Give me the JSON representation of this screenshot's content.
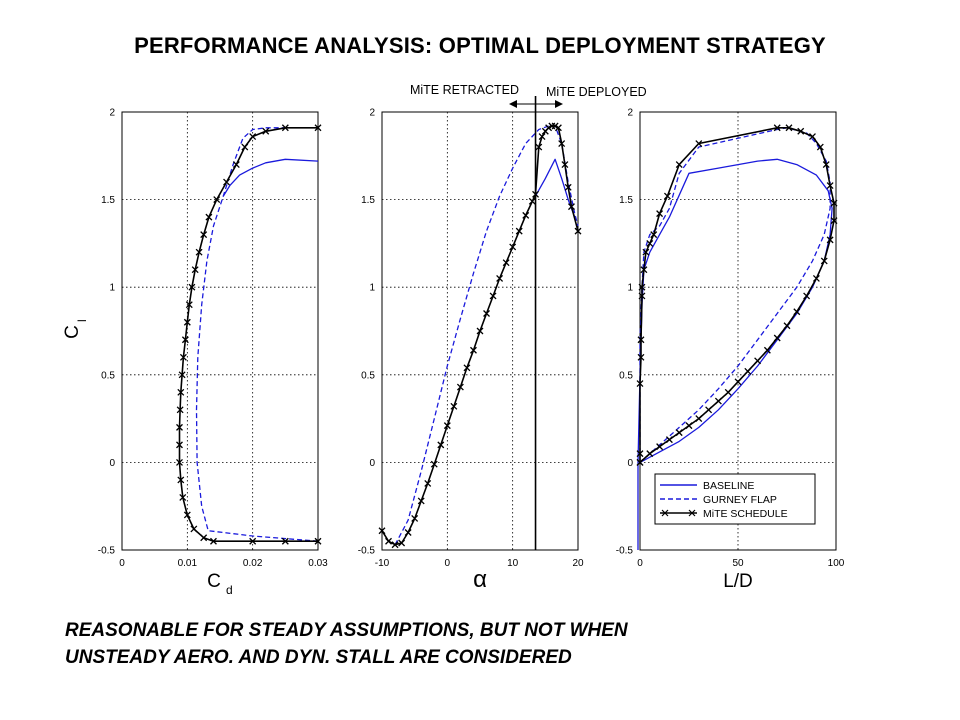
{
  "title": "PERFORMANCE ANALYSIS: OPTIMAL DEPLOYMENT STRATEGY",
  "note": {
    "line1": "REASONABLE FOR STEADY ASSUMPTIONS, BUT NOT WHEN",
    "line2": "UNSTEADY AERO. AND DYN. STALL ARE CONSIDERED"
  },
  "annotations": {
    "retracted": "MiTE RETRACTED",
    "deployed": "MiTE DEPLOYED",
    "alpha_switch": 13.5
  },
  "legend": {
    "placement": "lower-right of third panel",
    "entries": [
      "BASELINE",
      "GURNEY FLAP",
      "MiTE SCHEDULE"
    ]
  },
  "colors": {
    "baseline": "#1a1adc",
    "gurney": "#1a1adc",
    "mite": "#000000",
    "grid": "#000000"
  },
  "chart_data": [
    {
      "type": "line",
      "xlabel": "C_d",
      "ylabel": "C_l",
      "xlim": [
        0,
        0.03
      ],
      "ylim": [
        -0.5,
        2
      ],
      "xticks": [
        "0",
        "0.01",
        "0.02",
        "0.03"
      ],
      "yticks": [
        "-0.5",
        "0",
        "0.5",
        "1",
        "1.5",
        "2"
      ],
      "grid": true,
      "series": [
        {
          "name": "BASELINE",
          "style": "solid",
          "points": [
            [
              0.0155,
              1.52
            ],
            [
              0.0165,
              1.58
            ],
            [
              0.018,
              1.64
            ],
            [
              0.02,
              1.68
            ],
            [
              0.022,
              1.71
            ],
            [
              0.025,
              1.73
            ],
            [
              0.03,
              1.72
            ]
          ]
        },
        {
          "name": "GURNEY FLAP",
          "style": "dashed",
          "points": [
            [
              0.03,
              -0.45
            ],
            [
              0.02,
              -0.42
            ],
            [
              0.0132,
              -0.39
            ],
            [
              0.0122,
              -0.25
            ],
            [
              0.0115,
              0
            ],
            [
              0.0114,
              0.3
            ],
            [
              0.0116,
              0.6
            ],
            [
              0.0122,
              0.9
            ],
            [
              0.013,
              1.15
            ],
            [
              0.014,
              1.35
            ],
            [
              0.0155,
              1.52
            ],
            [
              0.017,
              1.7
            ],
            [
              0.0185,
              1.85
            ],
            [
              0.02,
              1.9
            ],
            [
              0.022,
              1.91
            ],
            [
              0.03,
              1.91
            ]
          ]
        },
        {
          "name": "MiTE SCHEDULE",
          "style": "solid-x",
          "points": [
            [
              0.03,
              -0.45
            ],
            [
              0.025,
              -0.45
            ],
            [
              0.02,
              -0.45
            ],
            [
              0.014,
              -0.45
            ],
            [
              0.0125,
              -0.43
            ],
            [
              0.011,
              -0.38
            ],
            [
              0.01,
              -0.3
            ],
            [
              0.0093,
              -0.2
            ],
            [
              0.009,
              -0.1
            ],
            [
              0.0088,
              0
            ],
            [
              0.0088,
              0.1
            ],
            [
              0.0088,
              0.2
            ],
            [
              0.0089,
              0.3
            ],
            [
              0.009,
              0.4
            ],
            [
              0.0092,
              0.5
            ],
            [
              0.0094,
              0.6
            ],
            [
              0.0097,
              0.7
            ],
            [
              0.01,
              0.8
            ],
            [
              0.0103,
              0.9
            ],
            [
              0.0107,
              1.0
            ],
            [
              0.0112,
              1.1
            ],
            [
              0.0118,
              1.2
            ],
            [
              0.0125,
              1.3
            ],
            [
              0.0133,
              1.4
            ],
            [
              0.0145,
              1.5
            ],
            [
              0.016,
              1.6
            ],
            [
              0.0175,
              1.7
            ],
            [
              0.0188,
              1.8
            ],
            [
              0.02,
              1.86
            ],
            [
              0.022,
              1.89
            ],
            [
              0.025,
              1.91
            ],
            [
              0.03,
              1.91
            ]
          ]
        }
      ]
    },
    {
      "type": "line",
      "xlabel": "α",
      "ylabel": "",
      "xlim": [
        -10,
        20
      ],
      "ylim": [
        -0.5,
        2
      ],
      "xticks": [
        "-10",
        "0",
        "10",
        "20"
      ],
      "yticks": [
        "-0.5",
        "0",
        "0.5",
        "1",
        "1.5",
        "2"
      ],
      "grid": true,
      "series": [
        {
          "name": "BASELINE",
          "style": "solid",
          "points": [
            [
              13.5,
              1.52
            ],
            [
              15,
              1.62
            ],
            [
              16.5,
              1.73
            ],
            [
              17.5,
              1.62
            ],
            [
              18.5,
              1.5
            ],
            [
              19.5,
              1.4
            ]
          ]
        },
        {
          "name": "GURNEY FLAP",
          "style": "dashed",
          "points": [
            [
              -8,
              -0.47
            ],
            [
              -6,
              -0.33
            ],
            [
              -4,
              -0.05
            ],
            [
              -2,
              0.25
            ],
            [
              0,
              0.55
            ],
            [
              2,
              0.82
            ],
            [
              4,
              1.08
            ],
            [
              6,
              1.32
            ],
            [
              8,
              1.52
            ],
            [
              10,
              1.68
            ],
            [
              12,
              1.82
            ],
            [
              14,
              1.9
            ],
            [
              15.5,
              1.92
            ],
            [
              16.5,
              1.92
            ],
            [
              17.5,
              1.82
            ],
            [
              18.5,
              1.6
            ],
            [
              19.5,
              1.42
            ],
            [
              20,
              1.35
            ]
          ]
        },
        {
          "name": "MiTE SCHEDULE",
          "style": "solid-x",
          "points": [
            [
              -10,
              -0.39
            ],
            [
              -9,
              -0.45
            ],
            [
              -8,
              -0.47
            ],
            [
              -7,
              -0.46
            ],
            [
              -6,
              -0.4
            ],
            [
              -5,
              -0.32
            ],
            [
              -4,
              -0.22
            ],
            [
              -3,
              -0.12
            ],
            [
              -2,
              -0.01
            ],
            [
              -1,
              0.1
            ],
            [
              0,
              0.21
            ],
            [
              1,
              0.32
            ],
            [
              2,
              0.43
            ],
            [
              3,
              0.54
            ],
            [
              4,
              0.64
            ],
            [
              5,
              0.75
            ],
            [
              6,
              0.85
            ],
            [
              7,
              0.95
            ],
            [
              8,
              1.05
            ],
            [
              9,
              1.14
            ],
            [
              10,
              1.23
            ],
            [
              11,
              1.32
            ],
            [
              12,
              1.41
            ],
            [
              13,
              1.49
            ],
            [
              13.5,
              1.53
            ],
            [
              14,
              1.8
            ],
            [
              14.5,
              1.86
            ],
            [
              15,
              1.89
            ],
            [
              15.5,
              1.91
            ],
            [
              16,
              1.92
            ],
            [
              16.5,
              1.92
            ],
            [
              17,
              1.91
            ],
            [
              17.5,
              1.82
            ],
            [
              18,
              1.7
            ],
            [
              18.5,
              1.57
            ],
            [
              19,
              1.46
            ],
            [
              20,
              1.32
            ]
          ]
        }
      ]
    },
    {
      "type": "line",
      "xlabel": "L/D",
      "ylabel": "",
      "xlim": [
        0,
        100
      ],
      "ylim": [
        -0.5,
        2
      ],
      "xticks": [
        "0",
        "50",
        "100"
      ],
      "yticks": [
        "-0.5",
        "0",
        "0.5",
        "1",
        "1.5",
        "2"
      ],
      "grid": true,
      "series": [
        {
          "name": "BASELINE",
          "style": "solid",
          "points": [
            [
              -1,
              -0.5
            ],
            [
              -1,
              0
            ],
            [
              0,
              0.5
            ],
            [
              1,
              0.9
            ],
            [
              2,
              1.1
            ],
            [
              5,
              1.2
            ],
            [
              10,
              1.3
            ],
            [
              15,
              1.4
            ],
            [
              25,
              1.65
            ],
            [
              40,
              1.68
            ],
            [
              60,
              1.72
            ],
            [
              70,
              1.73
            ],
            [
              80,
              1.7
            ],
            [
              90,
              1.64
            ],
            [
              96,
              1.55
            ],
            [
              98,
              1.45
            ],
            [
              97,
              1.3
            ],
            [
              94,
              1.15
            ],
            [
              88,
              1.0
            ],
            [
              80,
              0.85
            ],
            [
              70,
              0.7
            ],
            [
              60,
              0.55
            ],
            [
              50,
              0.42
            ],
            [
              40,
              0.3
            ],
            [
              30,
              0.2
            ],
            [
              20,
              0.12
            ],
            [
              10,
              0.06
            ],
            [
              0,
              0
            ]
          ]
        },
        {
          "name": "GURNEY FLAP",
          "style": "dashed",
          "points": [
            [
              0,
              0
            ],
            [
              10,
              0.1
            ],
            [
              20,
              0.2
            ],
            [
              30,
              0.3
            ],
            [
              40,
              0.42
            ],
            [
              50,
              0.55
            ],
            [
              60,
              0.7
            ],
            [
              70,
              0.85
            ],
            [
              80,
              1.0
            ],
            [
              88,
              1.15
            ],
            [
              94,
              1.3
            ],
            [
              97,
              1.45
            ],
            [
              97,
              1.6
            ],
            [
              95,
              1.72
            ],
            [
              90,
              1.82
            ],
            [
              85,
              1.88
            ],
            [
              75,
              1.91
            ],
            [
              70,
              1.9
            ],
            [
              50,
              1.85
            ],
            [
              30,
              1.8
            ],
            [
              20,
              1.65
            ],
            [
              15,
              1.45
            ],
            [
              10,
              1.35
            ],
            [
              5,
              1.3
            ],
            [
              2,
              1.2
            ],
            [
              1,
              1.0
            ],
            [
              0,
              0.7
            ],
            [
              0,
              0.3
            ],
            [
              0,
              0
            ]
          ]
        },
        {
          "name": "MiTE SCHEDULE",
          "style": "solid-x",
          "points": [
            [
              0,
              0
            ],
            [
              5,
              0.05
            ],
            [
              10,
              0.09
            ],
            [
              15,
              0.13
            ],
            [
              20,
              0.17
            ],
            [
              25,
              0.21
            ],
            [
              30,
              0.25
            ],
            [
              35,
              0.3
            ],
            [
              40,
              0.35
            ],
            [
              45,
              0.4
            ],
            [
              50,
              0.46
            ],
            [
              55,
              0.52
            ],
            [
              60,
              0.58
            ],
            [
              65,
              0.64
            ],
            [
              70,
              0.71
            ],
            [
              75,
              0.78
            ],
            [
              80,
              0.86
            ],
            [
              85,
              0.95
            ],
            [
              90,
              1.05
            ],
            [
              94,
              1.15
            ],
            [
              97,
              1.27
            ],
            [
              99,
              1.38
            ],
            [
              99,
              1.48
            ],
            [
              97,
              1.58
            ],
            [
              95,
              1.7
            ],
            [
              92,
              1.8
            ],
            [
              88,
              1.86
            ],
            [
              82,
              1.89
            ],
            [
              76,
              1.91
            ],
            [
              70,
              1.91
            ],
            [
              30,
              1.82
            ],
            [
              20,
              1.7
            ],
            [
              14,
              1.52
            ],
            [
              10,
              1.42
            ],
            [
              7,
              1.3
            ],
            [
              5,
              1.25
            ],
            [
              3,
              1.2
            ],
            [
              2,
              1.1
            ],
            [
              1,
              1.0
            ],
            [
              1,
              0.95
            ],
            [
              0.5,
              0.7
            ],
            [
              0.5,
              0.6
            ],
            [
              0,
              0.45
            ],
            [
              0,
              0.05
            ],
            [
              0,
              0
            ]
          ]
        }
      ]
    }
  ]
}
